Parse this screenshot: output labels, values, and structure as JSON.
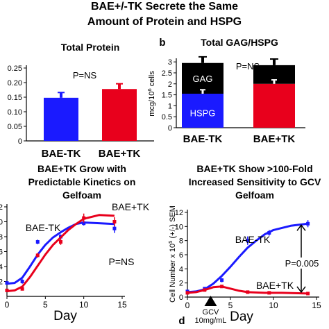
{
  "title": {
    "line1": "BAE+/-TK Secrete the Same",
    "line2": "Amount of Protein and HSPG"
  },
  "chart_data": [
    {
      "id": "a",
      "type": "bar",
      "title": "Total Protein",
      "categories": [
        "BAE-TK",
        "BAE+TK"
      ],
      "values": [
        0.148,
        0.178
      ],
      "errors": [
        0.018,
        0.018
      ],
      "colors": [
        "#1a1aff",
        "#e8001c"
      ],
      "ylim": [
        0,
        0.25
      ],
      "yticks": [
        "0",
        "0.05",
        "0.10",
        "0.15",
        "0.20",
        "0.25"
      ],
      "annotation": "P=NS",
      "xlabel": "",
      "ylabel": ""
    },
    {
      "id": "b",
      "panel_label": "b",
      "type": "bar",
      "stacked": true,
      "title": "Total GAG/HSPG",
      "categories": [
        "BAE-TK",
        "BAE+TK"
      ],
      "series": [
        {
          "name": "HSPG",
          "values": [
            1.55,
            2.0
          ],
          "colors": [
            "#1a1aff",
            "#e8001c"
          ]
        },
        {
          "name": "GAG",
          "values": [
            1.4,
            0.85
          ],
          "colors": [
            "#000000",
            "#000000"
          ]
        }
      ],
      "totals_err": [
        0.28,
        0.28
      ],
      "hspg_err": [
        0.18,
        0.18
      ],
      "ylim": [
        0,
        3.1
      ],
      "yticks": [
        "0",
        "0.5",
        "1",
        "1.5",
        "2",
        "2.5",
        "3"
      ],
      "ylabel_main": "mcg/10",
      "ylabel_sup": "6",
      "ylabel_tail": " cells",
      "annotation": "P=NS",
      "xlabel": ""
    },
    {
      "id": "c",
      "type": "line",
      "title": [
        "BAE+TK Grow with",
        "Predictable Kinetics on",
        "Gelfoam"
      ],
      "xlabel": "Day",
      "ylabel": "",
      "xlim": [
        0,
        15
      ],
      "ylim": [
        0,
        12
      ],
      "xticks": [
        "0",
        "5",
        "10",
        "15"
      ],
      "yticks": [
        "2",
        "4",
        "6",
        "8",
        "10",
        "12"
      ],
      "annotation": "P=NS",
      "series": [
        {
          "name": "BAE-TK",
          "color": "#1a1aff",
          "points": [
            [
              0,
              1.8
            ],
            [
              2,
              2.0
            ],
            [
              4,
              7.3
            ],
            [
              7,
              8.0
            ],
            [
              10,
              9.8
            ],
            [
              14,
              9.1
            ]
          ],
          "errors": [
            0.2,
            0.3,
            0.3,
            0.3,
            0.3,
            0.6
          ],
          "curve": [
            [
              0,
              1.7
            ],
            [
              1,
              1.8
            ],
            [
              2,
              2.5
            ],
            [
              3,
              4.0
            ],
            [
              4,
              5.6
            ],
            [
              5,
              6.9
            ],
            [
              6,
              7.9
            ],
            [
              7,
              8.6
            ],
            [
              8,
              9.2
            ],
            [
              9,
              9.7
            ],
            [
              10,
              9.9
            ],
            [
              12,
              9.8
            ],
            [
              14,
              9.7
            ]
          ]
        },
        {
          "name": "BAE+TK",
          "color": "#e8001c",
          "points": [
            [
              0,
              0.8
            ],
            [
              2,
              1.0
            ],
            [
              4,
              5.5
            ],
            [
              7,
              7.3
            ],
            [
              10,
              10.5
            ],
            [
              14,
              10.0
            ]
          ],
          "errors": [
            0.2,
            0.2,
            0.3,
            0.4,
            0.6,
            0.6
          ],
          "curve": [
            [
              0,
              0.7
            ],
            [
              1,
              0.8
            ],
            [
              2,
              1.3
            ],
            [
              3,
              2.6
            ],
            [
              4,
              4.1
            ],
            [
              5,
              5.6
            ],
            [
              6,
              6.9
            ],
            [
              7,
              7.9
            ],
            [
              8,
              8.9
            ],
            [
              9,
              9.7
            ],
            [
              10,
              10.4
            ],
            [
              12,
              10.9
            ],
            [
              14,
              10.8
            ]
          ]
        }
      ]
    },
    {
      "id": "d",
      "panel_label": "d",
      "type": "line",
      "title": [
        "BAE+TK Show >100-Fold",
        "Increased Sensitivity to GCV",
        "Gelfoam"
      ],
      "xlabel": "Day",
      "ylabel_main": "Cell Number x 10",
      "ylabel_sup": "5",
      "ylabel_tail": " (+/-) SEM",
      "xlim": [
        0,
        15
      ],
      "ylim": [
        0,
        12
      ],
      "xticks": [
        "0",
        "5",
        "10",
        "15"
      ],
      "yticks": [
        "0",
        "2",
        "4",
        "6",
        "8",
        "10",
        "12"
      ],
      "annotation": "P=0.005",
      "marker_label": [
        "GCV",
        "10mg/mL"
      ],
      "marker_day": 2.7,
      "series": [
        {
          "name": "BAE-TK",
          "color": "#1a1aff",
          "points": [
            [
              0,
              0.8
            ],
            [
              2,
              1.2
            ],
            [
              4,
              2.4
            ],
            [
              7,
              8.0
            ],
            [
              9.5,
              9.1
            ],
            [
              14,
              10.4
            ]
          ],
          "errors": [
            0.2,
            0.2,
            0.3,
            0.6,
            0.4,
            0.5
          ],
          "curve": [
            [
              0,
              0.7
            ],
            [
              1,
              0.8
            ],
            [
              2,
              1.1
            ],
            [
              3,
              1.9
            ],
            [
              4,
              3.0
            ],
            [
              5,
              4.3
            ],
            [
              6,
              5.7
            ],
            [
              7,
              7.0
            ],
            [
              8,
              8.0
            ],
            [
              9,
              8.9
            ],
            [
              10,
              9.5
            ],
            [
              12,
              10.1
            ],
            [
              14,
              10.4
            ]
          ]
        },
        {
          "name": "BAE+TK",
          "color": "#e8001c",
          "points": [
            [
              0,
              0.6
            ],
            [
              2,
              1.0
            ],
            [
              4,
              1.5
            ],
            [
              7,
              0.7
            ],
            [
              9.5,
              0.6
            ],
            [
              14,
              0.5
            ]
          ],
          "errors": [
            0.15,
            0.2,
            0.2,
            0.15,
            0.15,
            0.15
          ],
          "curve": [
            [
              0,
              0.6
            ],
            [
              1,
              0.7
            ],
            [
              2,
              1.0
            ],
            [
              3,
              1.4
            ],
            [
              4,
              1.5
            ],
            [
              5,
              1.2
            ],
            [
              6,
              0.9
            ],
            [
              7,
              0.7
            ],
            [
              9,
              0.6
            ],
            [
              11,
              0.6
            ],
            [
              14,
              0.5
            ]
          ]
        }
      ]
    }
  ]
}
